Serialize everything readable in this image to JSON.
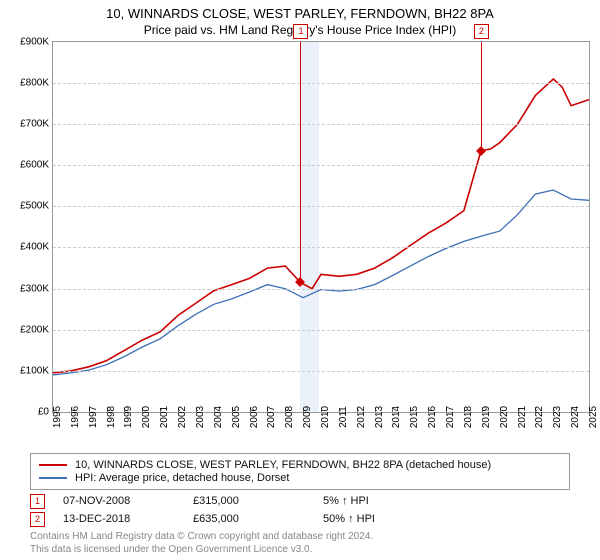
{
  "title": "10, WINNARDS CLOSE, WEST PARLEY, FERNDOWN, BH22 8PA",
  "subtitle": "Price paid vs. HM Land Registry's House Price Index (HPI)",
  "chart": {
    "type": "line",
    "background_color": "#ffffff",
    "grid_color": "#cccccc",
    "border_color": "#999999",
    "shaded_band": {
      "x_from": 2008.85,
      "x_to": 2009.9,
      "color": "#eaf1fa"
    },
    "x": {
      "min": 1995,
      "max": 2025,
      "ticks": [
        1995,
        1996,
        1997,
        1998,
        1999,
        2000,
        2001,
        2002,
        2003,
        2004,
        2005,
        2006,
        2007,
        2008,
        2009,
        2010,
        2011,
        2012,
        2013,
        2014,
        2015,
        2016,
        2017,
        2018,
        2019,
        2020,
        2021,
        2022,
        2023,
        2024,
        2025
      ]
    },
    "y": {
      "min": 0,
      "max": 900,
      "ticks": [
        0,
        100,
        200,
        300,
        400,
        500,
        600,
        700,
        800,
        900
      ],
      "prefix": "£",
      "suffix": "K"
    },
    "series": [
      {
        "name": "property",
        "label": "10, WINNARDS CLOSE, WEST PARLEY, FERNDOWN, BH22 8PA (detached house)",
        "color": "#cc0000",
        "line_width": 1.6,
        "x": [
          1995,
          1996,
          1997,
          1998,
          1999,
          2000,
          2001,
          2002,
          2003,
          2004,
          2005,
          2006,
          2007,
          2008,
          2008.85,
          2009.5,
          2010,
          2011,
          2012,
          2013,
          2014,
          2015,
          2016,
          2017,
          2018,
          2018.95,
          2019.5,
          2020,
          2021,
          2022,
          2023,
          2023.5,
          2024,
          2025
        ],
        "y": [
          95,
          100,
          110,
          125,
          150,
          175,
          195,
          235,
          265,
          295,
          310,
          325,
          350,
          355,
          315,
          300,
          335,
          330,
          335,
          350,
          375,
          405,
          435,
          460,
          490,
          635,
          640,
          655,
          700,
          770,
          810,
          790,
          745,
          760
        ]
      },
      {
        "name": "hpi",
        "label": "HPI: Average price, detached house, Dorset",
        "color": "#3b6fb6",
        "line_width": 1.3,
        "x": [
          1995,
          1996,
          1997,
          1998,
          1999,
          2000,
          2001,
          2002,
          2003,
          2004,
          2005,
          2006,
          2007,
          2008,
          2009,
          2010,
          2011,
          2012,
          2013,
          2014,
          2015,
          2016,
          2017,
          2018,
          2019,
          2020,
          2021,
          2022,
          2023,
          2024,
          2025
        ],
        "y": [
          90,
          95,
          102,
          115,
          135,
          158,
          178,
          210,
          238,
          262,
          275,
          292,
          310,
          300,
          278,
          298,
          294,
          298,
          310,
          332,
          355,
          378,
          398,
          415,
          428,
          440,
          480,
          530,
          540,
          518,
          515
        ]
      }
    ],
    "markers": [
      {
        "id": "1",
        "x": 2008.85,
        "y": 315
      },
      {
        "id": "2",
        "x": 2018.95,
        "y": 635
      }
    ]
  },
  "legend": {
    "border_color": "#999999",
    "items": [
      {
        "color": "#cc0000",
        "label": "10, WINNARDS CLOSE, WEST PARLEY, FERNDOWN, BH22 8PA (detached house)"
      },
      {
        "color": "#3b6fb6",
        "label": "HPI: Average price, detached house, Dorset"
      }
    ]
  },
  "marker_rows": [
    {
      "id": "1",
      "date": "07-NOV-2008",
      "price": "£315,000",
      "delta": "5% ↑ HPI"
    },
    {
      "id": "2",
      "date": "13-DEC-2018",
      "price": "£635,000",
      "delta": "50% ↑ HPI"
    }
  ],
  "footnote": {
    "line1": "Contains HM Land Registry data © Crown copyright and database right 2024.",
    "line2": "This data is licensed under the Open Government Licence v3.0."
  },
  "fonts": {
    "title_size": 13,
    "subtitle_size": 12,
    "axis_size": 10,
    "legend_size": 11
  },
  "colors": {
    "text": "#000000",
    "muted": "#888888"
  }
}
